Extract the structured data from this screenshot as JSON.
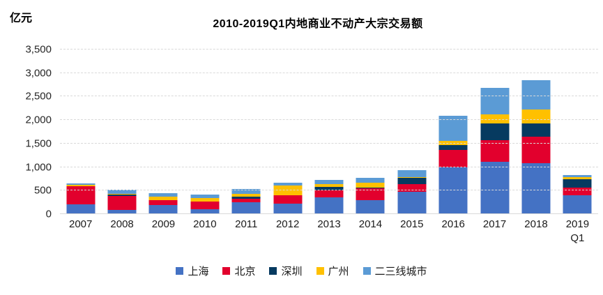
{
  "chart_data": {
    "type": "bar",
    "stacked": true,
    "title": "2010-2019Q1内地商业不动产大宗交易额",
    "unit_label": "亿元",
    "categories": [
      "2007",
      "2008",
      "2009",
      "2010",
      "2011",
      "2012",
      "2013",
      "2014",
      "2015",
      "2016",
      "2017",
      "2018",
      "2019\nQ1"
    ],
    "series": [
      {
        "name": "上海",
        "color": "#4472C4",
        "values": [
          210,
          90,
          190,
          100,
          250,
          225,
          350,
          295,
          480,
          1000,
          1115,
          1085,
          405
        ]
      },
      {
        "name": "北京",
        "color": "#E2002D",
        "values": [
          380,
          290,
          100,
          165,
          75,
          175,
          160,
          260,
          160,
          360,
          455,
          565,
          160
        ]
      },
      {
        "name": "深圳",
        "color": "#063A60",
        "values": [
          10,
          30,
          5,
          5,
          45,
          5,
          70,
          5,
          125,
          110,
          355,
          280,
          170
        ]
      },
      {
        "name": "广州",
        "color": "#FFC000",
        "values": [
          25,
          25,
          70,
          75,
          60,
          205,
          60,
          105,
          15,
          85,
          190,
          300,
          50
        ]
      },
      {
        "name": "二三线城市",
        "color": "#5B9BD5",
        "values": [
          25,
          90,
          75,
          75,
          105,
          60,
          90,
          100,
          155,
          540,
          575,
          620,
          40
        ]
      }
    ],
    "totals": [
      650,
      525,
      440,
      420,
      535,
      670,
      730,
      765,
      935,
      2095,
      2690,
      2850,
      825
    ],
    "ylabel": "",
    "xlabel": "",
    "ylim": [
      0,
      3500
    ],
    "ytick_step": 500,
    "ytick_labels": [
      "0",
      "500",
      "1,000",
      "1,500",
      "2,000",
      "2,500",
      "3,000",
      "3,500"
    ],
    "grid": true,
    "gridline_color": "#D9D9D9",
    "legend_position": "bottom"
  }
}
